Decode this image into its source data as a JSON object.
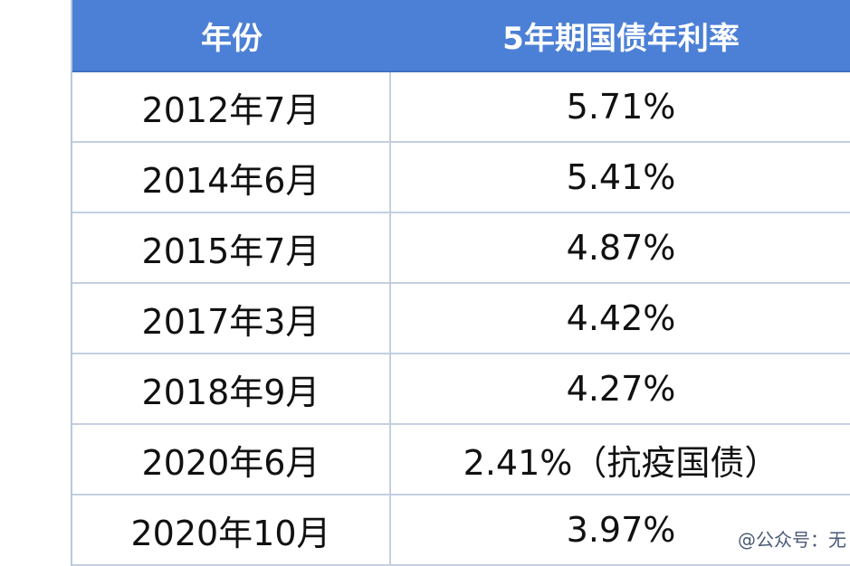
{
  "table": {
    "header": [
      "年份",
      "5年期国债年利率"
    ],
    "rows": [
      [
        "2012年7月",
        "5.71%"
      ],
      [
        "2014年6月",
        "5.41%"
      ],
      [
        "2015年7月",
        "4.87%"
      ],
      [
        "2017年3月",
        "4.42%"
      ],
      [
        "2018年9月",
        "4.27%"
      ],
      [
        "2020年6月",
        "2.41%（抗疫国债）"
      ],
      [
        "2020年10月",
        "3.97%"
      ]
    ]
  },
  "watermark": "@公众号：无"
}
